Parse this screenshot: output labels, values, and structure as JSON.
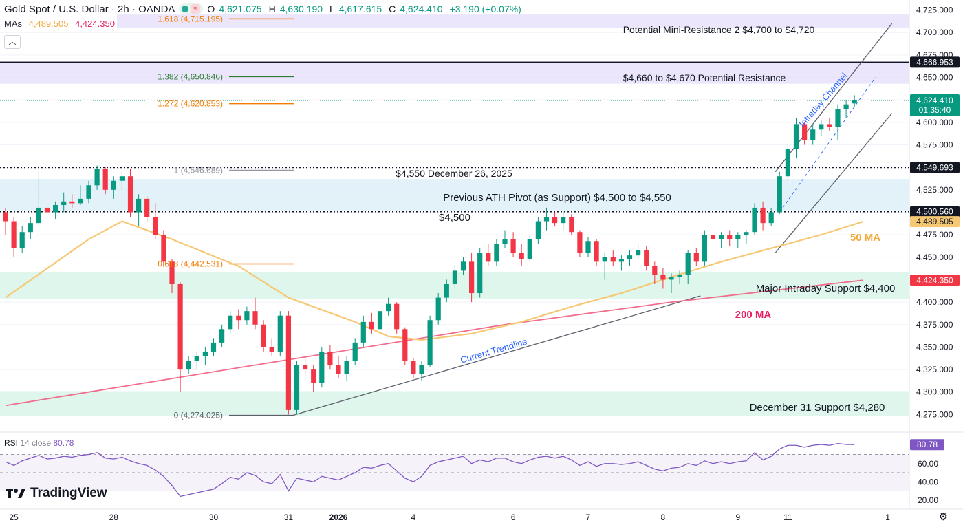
{
  "header": {
    "symbol": "Gold Spot / U.S. Dollar · 2h · OANDA",
    "open_label": "O",
    "open": "4,621.075",
    "high_label": "H",
    "high": "4,630.190",
    "low_label": "L",
    "low": "4,617.615",
    "close_label": "C",
    "close": "4,624.410",
    "change": "+3.190 (+0.07%)"
  },
  "mas": {
    "label": "MAs",
    "ma50_value": "4,489.505",
    "ma200_value": "4,424.350"
  },
  "watermark": "TradingView",
  "colors": {
    "up": "#089981",
    "down": "#f23645",
    "ma50": "#f7c873",
    "ma200": "#f06d8c",
    "support_zone": "#d9f5ea",
    "resistance_zone": "#e6defb",
    "ath_zone": "#dcedf8",
    "rsi_line": "#7e57c2",
    "fib_orange": "#f57c00",
    "fib_green": "#2e7d32",
    "trend": "#5d606b"
  },
  "chart_data": {
    "type": "candlestick",
    "y_axis": {
      "min": 4260,
      "max": 4730,
      "ticks": [
        4275,
        4300,
        4325,
        4350,
        4375,
        4400,
        4425,
        4450,
        4475,
        4500,
        4525,
        4550,
        4575,
        4600,
        4625,
        4650,
        4675,
        4700,
        4725
      ]
    },
    "x_ticks": [
      {
        "label": "25",
        "i": 1
      },
      {
        "label": "28",
        "i": 13
      },
      {
        "label": "30",
        "i": 25
      },
      {
        "label": "31",
        "i": 34
      },
      {
        "label": "2026",
        "i": 40
      },
      {
        "label": "4",
        "i": 49
      },
      {
        "label": "6",
        "i": 61
      },
      {
        "label": "7",
        "i": 70
      },
      {
        "label": "8",
        "i": 79
      },
      {
        "label": "9",
        "i": 88
      },
      {
        "label": "11",
        "i": 94
      },
      {
        "label": "1",
        "i": 106
      }
    ],
    "candles": [
      [
        4500,
        4505,
        4475,
        4490
      ],
      [
        4490,
        4495,
        4450,
        4460
      ],
      [
        4460,
        4485,
        4455,
        4478
      ],
      [
        4478,
        4495,
        4470,
        4488
      ],
      [
        4488,
        4545,
        4485,
        4505
      ],
      [
        4505,
        4515,
        4495,
        4500
      ],
      [
        4500,
        4512,
        4492,
        4508
      ],
      [
        4508,
        4522,
        4500,
        4512
      ],
      [
        4512,
        4520,
        4505,
        4510
      ],
      [
        4510,
        4530,
        4508,
        4515
      ],
      [
        4515,
        4535,
        4510,
        4530
      ],
      [
        4530,
        4552,
        4525,
        4548
      ],
      [
        4548,
        4550,
        4520,
        4525
      ],
      [
        4525,
        4540,
        4515,
        4535
      ],
      [
        4535,
        4545,
        4525,
        4540
      ],
      [
        4540,
        4548,
        4495,
        4500
      ],
      [
        4500,
        4520,
        4485,
        4515
      ],
      [
        4515,
        4518,
        4490,
        4495
      ],
      [
        4495,
        4510,
        4470,
        4475
      ],
      [
        4475,
        4480,
        4440,
        4445
      ],
      [
        4445,
        4448,
        4410,
        4420
      ],
      [
        4420,
        4422,
        4300,
        4325
      ],
      [
        4325,
        4340,
        4320,
        4335
      ],
      [
        4335,
        4345,
        4325,
        4340
      ],
      [
        4340,
        4350,
        4330,
        4345
      ],
      [
        4345,
        4360,
        4340,
        4355
      ],
      [
        4355,
        4375,
        4350,
        4370
      ],
      [
        4370,
        4390,
        4365,
        4385
      ],
      [
        4385,
        4392,
        4370,
        4380
      ],
      [
        4380,
        4395,
        4375,
        4390
      ],
      [
        4390,
        4405,
        4370,
        4375
      ],
      [
        4375,
        4380,
        4345,
        4350
      ],
      [
        4350,
        4360,
        4340,
        4345
      ],
      [
        4345,
        4390,
        4340,
        4385
      ],
      [
        4385,
        4390,
        4275,
        4280
      ],
      [
        4280,
        4335,
        4275,
        4330
      ],
      [
        4330,
        4340,
        4318,
        4325
      ],
      [
        4325,
        4330,
        4300,
        4310
      ],
      [
        4310,
        4350,
        4305,
        4345
      ],
      [
        4345,
        4352,
        4325,
        4330
      ],
      [
        4330,
        4340,
        4315,
        4320
      ],
      [
        4320,
        4340,
        4312,
        4335
      ],
      [
        4335,
        4360,
        4330,
        4355
      ],
      [
        4355,
        4385,
        4350,
        4378
      ],
      [
        4378,
        4388,
        4365,
        4370
      ],
      [
        4370,
        4395,
        4365,
        4390
      ],
      [
        4390,
        4405,
        4385,
        4398
      ],
      [
        4398,
        4400,
        4365,
        4370
      ],
      [
        4370,
        4372,
        4330,
        4335
      ],
      [
        4335,
        4338,
        4315,
        4320
      ],
      [
        4320,
        4335,
        4312,
        4330
      ],
      [
        4330,
        4385,
        4328,
        4380
      ],
      [
        4380,
        4410,
        4375,
        4405
      ],
      [
        4405,
        4425,
        4400,
        4420
      ],
      [
        4420,
        4440,
        4415,
        4435
      ],
      [
        4435,
        4450,
        4430,
        4445
      ],
      [
        4445,
        4455,
        4400,
        4410
      ],
      [
        4410,
        4460,
        4405,
        4455
      ],
      [
        4455,
        4465,
        4440,
        4445
      ],
      [
        4445,
        4470,
        4440,
        4465
      ],
      [
        4465,
        4480,
        4460,
        4470
      ],
      [
        4470,
        4478,
        4450,
        4455
      ],
      [
        4455,
        4465,
        4440,
        4448
      ],
      [
        4448,
        4475,
        4445,
        4470
      ],
      [
        4470,
        4495,
        4465,
        4490
      ],
      [
        4490,
        4505,
        4480,
        4495
      ],
      [
        4495,
        4500,
        4485,
        4488
      ],
      [
        4488,
        4502,
        4480,
        4495
      ],
      [
        4495,
        4498,
        4475,
        4478
      ],
      [
        4478,
        4480,
        4450,
        4455
      ],
      [
        4455,
        4472,
        4450,
        4468
      ],
      [
        4468,
        4470,
        4440,
        4445
      ],
      [
        4445,
        4455,
        4425,
        4450
      ],
      [
        4450,
        4458,
        4440,
        4445
      ],
      [
        4445,
        4452,
        4435,
        4448
      ],
      [
        4448,
        4458,
        4440,
        4452
      ],
      [
        4452,
        4465,
        4448,
        4458
      ],
      [
        4458,
        4462,
        4435,
        4440
      ],
      [
        4440,
        4445,
        4420,
        4430
      ],
      [
        4430,
        4438,
        4415,
        4425
      ],
      [
        4425,
        4432,
        4410,
        4428
      ],
      [
        4428,
        4435,
        4420,
        4430
      ],
      [
        4430,
        4458,
        4420,
        4455
      ],
      [
        4455,
        4460,
        4440,
        4445
      ],
      [
        4445,
        4480,
        4440,
        4475
      ],
      [
        4475,
        4482,
        4465,
        4470
      ],
      [
        4470,
        4478,
        4460,
        4475
      ],
      [
        4475,
        4480,
        4462,
        4470
      ],
      [
        4470,
        4478,
        4460,
        4475
      ],
      [
        4475,
        4480,
        4465,
        4478
      ],
      [
        4478,
        4510,
        4475,
        4505
      ],
      [
        4505,
        4512,
        4480,
        4488
      ],
      [
        4488,
        4505,
        4485,
        4500
      ],
      [
        4500,
        4545,
        4498,
        4540
      ],
      [
        4540,
        4575,
        4535,
        4570
      ],
      [
        4570,
        4605,
        4560,
        4598
      ],
      [
        4598,
        4600,
        4575,
        4580
      ],
      [
        4580,
        4598,
        4575,
        4592
      ],
      [
        4592,
        4602,
        4585,
        4598
      ],
      [
        4598,
        4605,
        4590,
        4595
      ],
      [
        4595,
        4620,
        4580,
        4615
      ],
      [
        4615,
        4625,
        4605,
        4620
      ],
      [
        4621.075,
        4630.19,
        4617.615,
        4624.41
      ]
    ],
    "ma50": [
      [
        0,
        4405
      ],
      [
        10,
        4470
      ],
      [
        14,
        4490
      ],
      [
        20,
        4470
      ],
      [
        28,
        4440
      ],
      [
        34,
        4405
      ],
      [
        42,
        4378
      ],
      [
        46,
        4362
      ],
      [
        50,
        4358
      ],
      [
        56,
        4365
      ],
      [
        62,
        4378
      ],
      [
        68,
        4395
      ],
      [
        74,
        4410
      ],
      [
        80,
        4428
      ],
      [
        86,
        4445
      ],
      [
        92,
        4460
      ],
      [
        98,
        4475
      ],
      [
        103,
        4489.5
      ]
    ],
    "ma200": [
      [
        0,
        4285
      ],
      [
        20,
        4315
      ],
      [
        40,
        4345
      ],
      [
        60,
        4375
      ],
      [
        80,
        4400
      ],
      [
        103,
        4424.35
      ]
    ],
    "rsi": {
      "label": "RSI",
      "period": "14 close",
      "value": "80.78",
      "levels": [
        30,
        50,
        70
      ],
      "ticks": [
        20,
        40,
        60
      ],
      "min": 10,
      "max": 90,
      "values": [
        62,
        58,
        63,
        66,
        69,
        65,
        66,
        68,
        67,
        69,
        70,
        72,
        66,
        65,
        67,
        63,
        60,
        58,
        53,
        46,
        36,
        24,
        26,
        28,
        30,
        32,
        38,
        45,
        43,
        50,
        47,
        40,
        38,
        48,
        30,
        44,
        42,
        40,
        46,
        44,
        42,
        46,
        50,
        56,
        55,
        58,
        60,
        52,
        44,
        40,
        46,
        58,
        62,
        64,
        66,
        68,
        60,
        64,
        62,
        66,
        66,
        62,
        60,
        64,
        67,
        68,
        66,
        68,
        64,
        58,
        62,
        57,
        60,
        60,
        59,
        60,
        62,
        58,
        54,
        52,
        55,
        56,
        60,
        58,
        63,
        60,
        62,
        60,
        62,
        63,
        72,
        64,
        68,
        76,
        80,
        80,
        78,
        80,
        81,
        80,
        82,
        81,
        80.78
      ]
    },
    "xlabel": "",
    "ylabel": ""
  },
  "annotations": {
    "fib_1618": "1.618 (4,715.195)",
    "fib_1382": "1.382 (4,650.846)",
    "fib_1272": "1.272 (4,620.853)",
    "fib_1": "1 (4,546.689)",
    "fib_0618": "0.618 (4,442.531)",
    "fib_0": "0 (4,274.025)",
    "mini_resistance": "Potential Mini-Resistance 2 $4,700 to $4,720",
    "resistance": "$4,660 to $4,670 Potential Resistance",
    "dec26": "$4,550 December 26, 2025",
    "ath_pivot": "Previous ATH Pivot (as Support) $4,500 to $4,550",
    "level_4500": "$4,500",
    "major_support": "Major Intraday Support $4,400",
    "dec31_support": "December 31 Support $4,280",
    "ma50_label": "50 MA",
    "ma200_label": "200 MA",
    "trendline": "Current Trendline",
    "channel": "Intraday Channel"
  },
  "price_tags": {
    "resistance_line": "4,666.953",
    "last_price": "4,624.410",
    "countdown": "01:35:40",
    "dec26_line": "4,549.693",
    "line_4500": "4,500.560",
    "ma50": "4,489.505",
    "ma200": "4,424.350"
  }
}
